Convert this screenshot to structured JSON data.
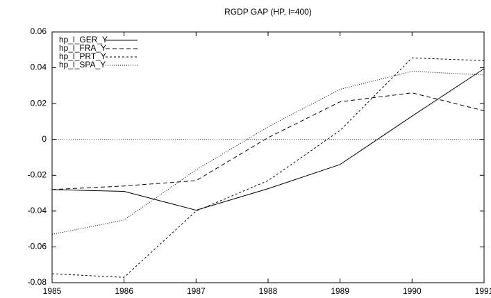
{
  "chart_data": {
    "type": "line",
    "title": "RGDP GAP (HP, l=400)",
    "x": [
      1985,
      1986,
      1987,
      1988,
      1989,
      1990,
      1991
    ],
    "series": [
      {
        "name": "hp_l_GER_Y",
        "color": "#000000",
        "dash": "none",
        "values": [
          -0.028,
          -0.029,
          -0.0395,
          -0.0275,
          -0.014,
          0.013,
          0.0395
        ]
      },
      {
        "name": "hp_l_FRA_Y",
        "color": "#000000",
        "dash": "6,4",
        "values": [
          -0.028,
          -0.026,
          -0.023,
          0.001,
          0.021,
          0.026,
          0.016
        ]
      },
      {
        "name": "hp_l_PRT_Y",
        "color": "#000000",
        "dash": "3,3",
        "values": [
          -0.075,
          -0.077,
          -0.04,
          -0.023,
          0.005,
          0.0455,
          0.044
        ]
      },
      {
        "name": "hp_l_SPA_Y",
        "color": "#000000",
        "dash": "1,2",
        "values": [
          -0.053,
          -0.045,
          -0.017,
          0.007,
          0.028,
          0.038,
          0.036
        ]
      }
    ],
    "xlim": [
      1985,
      1991
    ],
    "xticks": [
      1985,
      1986,
      1987,
      1988,
      1989,
      1990,
      1991
    ],
    "ylim": [
      -0.08,
      0.06
    ],
    "yticks": [
      -0.08,
      -0.06,
      -0.04,
      -0.02,
      0,
      0.02,
      0.04,
      0.06
    ],
    "legend": "top-left"
  }
}
